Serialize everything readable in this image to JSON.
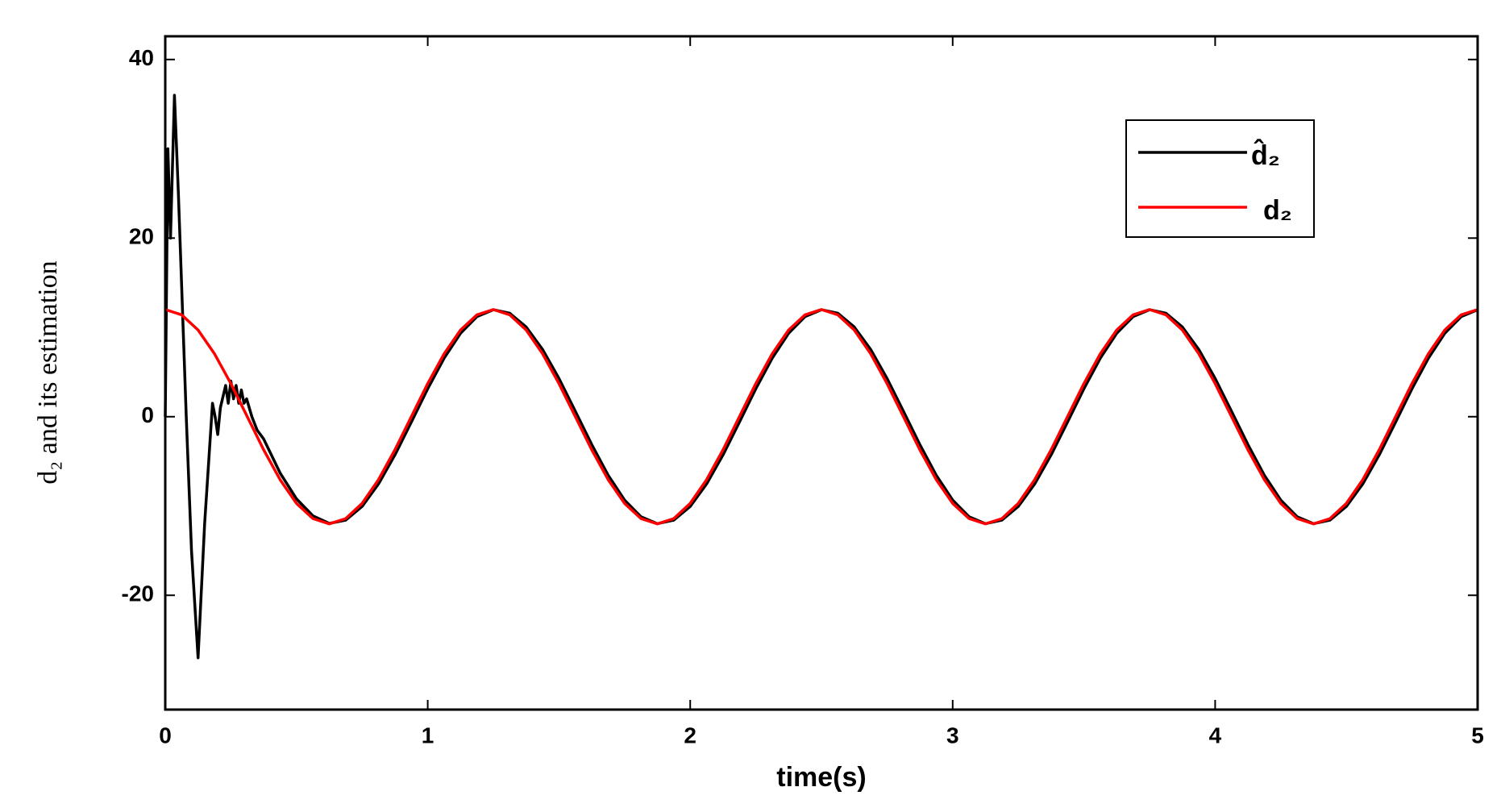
{
  "chart_data": {
    "type": "line",
    "x_label": "time(s)",
    "y_label": "d₂ and its estimation",
    "xlim": [
      0,
      5
    ],
    "ylim": [
      -32.8,
      42.6
    ],
    "xticks": [
      0,
      1,
      2,
      3,
      4,
      5
    ],
    "yticks": [
      -20,
      0,
      20,
      40
    ],
    "legend": "upper right",
    "series": [
      {
        "name": "d̂₂",
        "color": "#000000",
        "x": [
          0,
          0.01,
          0.02,
          0.035,
          0.05,
          0.08,
          0.1,
          0.125,
          0.15,
          0.18,
          0.19,
          0.2,
          0.21,
          0.23,
          0.24,
          0.25,
          0.26,
          0.27,
          0.28,
          0.29,
          0.3,
          0.31,
          0.33,
          0.35,
          0.375,
          0.4375,
          0.5,
          0.5625,
          0.625,
          0.6875,
          0.75,
          0.8125,
          0.875,
          0.9375,
          1,
          1.0625,
          1.125,
          1.1875,
          1.25,
          1.3125,
          1.375,
          1.4375,
          1.5,
          1.5625,
          1.625,
          1.6875,
          1.75,
          1.8125,
          1.875,
          1.9375,
          2,
          2.0625,
          2.125,
          2.1875,
          2.25,
          2.3125,
          2.375,
          2.4375,
          2.5,
          2.5625,
          2.625,
          2.6875,
          2.75,
          2.8125,
          2.875,
          2.9375,
          3,
          3.0625,
          3.125,
          3.1875,
          3.25,
          3.3125,
          3.375,
          3.4375,
          3.5,
          3.5625,
          3.625,
          3.6875,
          3.75,
          3.8125,
          3.875,
          3.9375,
          4,
          4.0625,
          4.125,
          4.1875,
          4.25,
          4.3125,
          4.375,
          4.4375,
          4.5,
          4.5625,
          4.625,
          4.6875,
          4.75,
          4.8125,
          4.875,
          4.9375,
          5
        ],
        "values": [
          0,
          30,
          20,
          36,
          25,
          0,
          -15,
          -27,
          -12,
          1.5,
          0,
          -2,
          1,
          3.5,
          1.5,
          4,
          2,
          3.5,
          1.5,
          3,
          1.5,
          2,
          0,
          -1.5,
          -2.5,
          -6.3,
          -9.2,
          -11.1,
          -11.95,
          -11.58,
          -10.05,
          -7.53,
          -4.28,
          -0.6,
          3.13,
          6.56,
          9.34,
          11.21,
          11.98,
          11.58,
          10.05,
          7.53,
          4.28,
          0.6,
          -3.13,
          -6.56,
          -9.34,
          -11.21,
          -11.98,
          -11.58,
          -10.05,
          -7.53,
          -4.28,
          -0.6,
          3.13,
          6.56,
          9.34,
          11.21,
          11.98,
          11.58,
          10.05,
          7.53,
          4.28,
          0.6,
          -3.13,
          -6.56,
          -9.34,
          -11.21,
          -11.98,
          -11.58,
          -10.05,
          -7.53,
          -4.28,
          -0.6,
          3.13,
          6.56,
          9.34,
          11.21,
          11.98,
          11.58,
          10.05,
          7.53,
          4.28,
          0.6,
          -3.13,
          -6.56,
          -9.34,
          -11.21,
          -11.98,
          -11.58,
          -10.05,
          -7.53,
          -4.28,
          -0.6,
          3.13,
          6.56,
          9.34,
          11.21,
          11.98
        ]
      },
      {
        "name": "d₂",
        "color": "#ff0000",
        "x": [
          0,
          0.0625,
          0.125,
          0.1875,
          0.25,
          0.3125,
          0.375,
          0.4375,
          0.5,
          0.5625,
          0.625,
          0.6875,
          0.75,
          0.8125,
          0.875,
          0.9375,
          1,
          1.0625,
          1.125,
          1.1875,
          1.25,
          1.3125,
          1.375,
          1.4375,
          1.5,
          1.5625,
          1.625,
          1.6875,
          1.75,
          1.8125,
          1.875,
          1.9375,
          2,
          2.0625,
          2.125,
          2.1875,
          2.25,
          2.3125,
          2.375,
          2.4375,
          2.5,
          2.5625,
          2.625,
          2.6875,
          2.75,
          2.8125,
          2.875,
          2.9375,
          3,
          3.0625,
          3.125,
          3.1875,
          3.25,
          3.3125,
          3.375,
          3.4375,
          3.5,
          3.5625,
          3.625,
          3.6875,
          3.75,
          3.8125,
          3.875,
          3.9375,
          4,
          4.0625,
          4.125,
          4.1875,
          4.25,
          4.3125,
          4.375,
          4.4375,
          4.5,
          4.5625,
          4.625,
          4.6875,
          4.75,
          4.8125,
          4.875,
          4.9375,
          5
        ],
        "values": [
          12,
          11.41,
          9.71,
          7.05,
          3.71,
          0,
          -3.71,
          -7.05,
          -9.71,
          -11.41,
          -12,
          -11.41,
          -9.71,
          -7.05,
          -3.71,
          0,
          3.71,
          7.05,
          9.71,
          11.41,
          12,
          11.41,
          9.71,
          7.05,
          3.71,
          0,
          -3.71,
          -7.05,
          -9.71,
          -11.41,
          -12,
          -11.41,
          -9.71,
          -7.05,
          -3.71,
          0,
          3.71,
          7.05,
          9.71,
          11.41,
          12,
          11.41,
          9.71,
          7.05,
          3.71,
          0,
          -3.71,
          -7.05,
          -9.71,
          -11.41,
          -12,
          -11.41,
          -9.71,
          -7.05,
          -3.71,
          0,
          3.71,
          7.05,
          9.71,
          11.41,
          12,
          11.41,
          9.71,
          7.05,
          3.71,
          0,
          -3.71,
          -7.05,
          -9.71,
          -11.41,
          -12,
          -11.41,
          -9.71,
          -7.05,
          -3.71,
          0,
          3.71,
          7.05,
          9.71,
          11.41,
          12
        ]
      }
    ]
  }
}
